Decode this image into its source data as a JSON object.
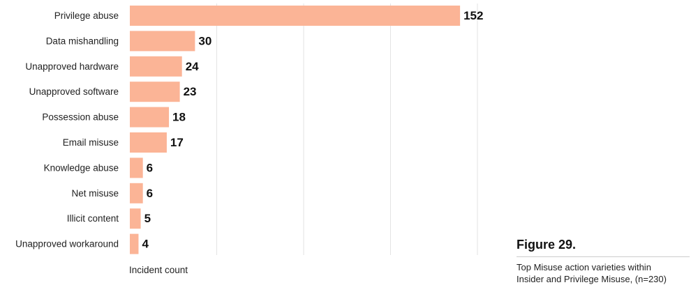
{
  "chart_data": {
    "type": "bar",
    "orientation": "horizontal",
    "categories": [
      "Privilege abuse",
      "Data mishandling",
      "Unapproved hardware",
      "Unapproved software",
      "Possession abuse",
      "Email misuse",
      "Knowledge abuse",
      "Net misuse",
      "Illicit content",
      "Unapproved workaround"
    ],
    "values": [
      152,
      30,
      24,
      23,
      18,
      17,
      6,
      6,
      5,
      4
    ],
    "xlabel": "Incident count",
    "xlim": [
      0,
      160
    ],
    "grid": true,
    "bar_color": "#fbb496",
    "grid_color": "#e3e3e3"
  },
  "figure": {
    "title": "Figure 29.",
    "caption_line1": "Top Misuse action varieties within",
    "caption_line2": "Insider and Privilege Misuse, (n=230)"
  }
}
